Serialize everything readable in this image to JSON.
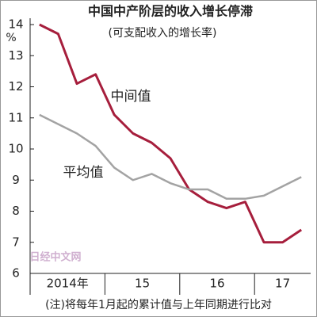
{
  "chart_data": {
    "type": "line",
    "title": "中国中产阶层的收入增长停滞",
    "subtitle": "(可支配收入的增长率)",
    "ylabel": "%",
    "categories": [
      "2014年",
      null,
      null,
      null,
      "15",
      null,
      null,
      null,
      "16",
      null,
      null,
      null,
      "17",
      null,
      null
    ],
    "series": [
      {
        "name": "中间值",
        "color": "#a61e3c",
        "values": [
          14.0,
          13.7,
          12.1,
          12.4,
          11.1,
          10.5,
          10.2,
          9.7,
          8.7,
          8.3,
          8.1,
          8.3,
          7.0,
          7.0,
          7.4
        ]
      },
      {
        "name": "平均值",
        "color": "#a3a3a3",
        "values": [
          11.1,
          10.8,
          10.5,
          10.1,
          9.4,
          9.0,
          9.2,
          8.9,
          8.7,
          8.7,
          8.4,
          8.4,
          8.5,
          8.8,
          9.1
        ]
      }
    ],
    "ylim": [
      6,
      14
    ],
    "yticks": [
      6,
      7,
      8,
      9,
      10,
      11,
      12,
      13,
      14
    ],
    "watermark": "日经中文网",
    "note": "(注)将每年1月起的累计值与上年同期进行比对"
  }
}
